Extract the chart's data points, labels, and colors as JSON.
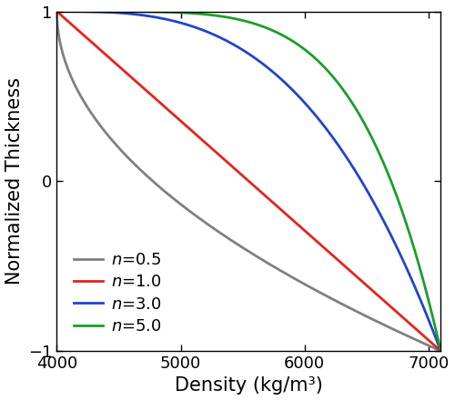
{
  "rho_min": 4000,
  "rho_max": 7100,
  "ylim": [
    -1,
    1
  ],
  "xlim": [
    4000,
    7100
  ],
  "xticks": [
    4000,
    5000,
    6000,
    7000
  ],
  "yticks": [
    -1,
    0,
    1
  ],
  "series": [
    {
      "n": 0.5,
      "color": "#808080"
    },
    {
      "n": 1.0,
      "color": "#e8221a"
    },
    {
      "n": 3.0,
      "color": "#2244cc"
    },
    {
      "n": 5.0,
      "color": "#1a9e2a"
    }
  ],
  "xlabel": "Density (kg/m³)",
  "ylabel": "Normalized Thickness",
  "linewidth": 2.0,
  "axis_fontsize": 15,
  "tick_fontsize": 13,
  "legend_fontsize": 13
}
